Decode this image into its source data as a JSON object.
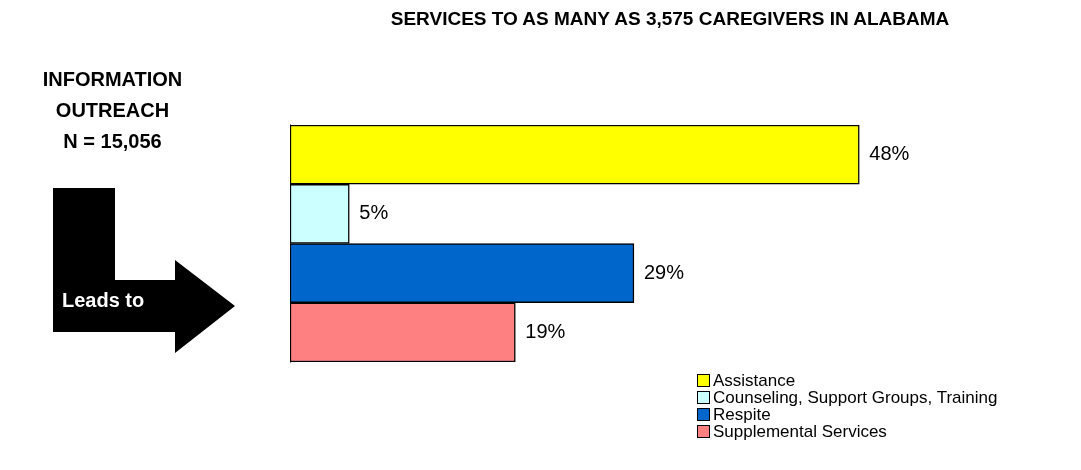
{
  "chart_data": {
    "type": "bar",
    "orientation": "horizontal",
    "title": "SERVICES TO AS MANY AS 3,575 CAREGIVERS IN ALABAMA",
    "categories": [
      null
    ],
    "series": [
      {
        "name": "Assistance",
        "color": "#ffff00",
        "values": [
          48
        ],
        "value_labels": [
          "48%"
        ]
      },
      {
        "name": "Counseling, Support Groups, Training",
        "color": "#ccffff",
        "values": [
          5
        ],
        "value_labels": [
          "5%"
        ]
      },
      {
        "name": "Respite",
        "color": "#0066cc",
        "values": [
          29
        ],
        "value_labels": [
          "29%"
        ]
      },
      {
        "name": "Supplemental Services",
        "color": "#ff8080",
        "values": [
          19
        ],
        "value_labels": [
          "19%"
        ]
      }
    ],
    "legend": "bottom right",
    "grid": false,
    "annotations": [
      "INFORMATION\nOUTREACH\nN = 15,056",
      "Leads to"
    ]
  }
}
